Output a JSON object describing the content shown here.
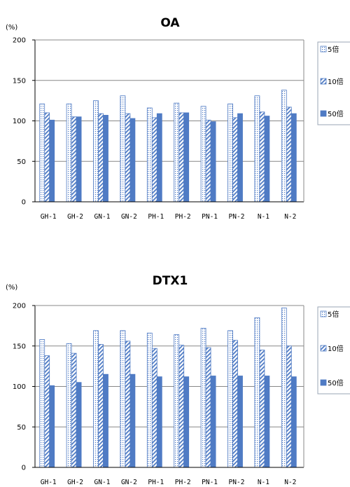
{
  "colors": {
    "bar_stroke": "#4F7BC4",
    "bar_fill_dark": "#4F7BC4",
    "hatch_line": "#4F7BC4",
    "grid": "#888888",
    "axis": "#000000",
    "legend_border": "#9AA4B4"
  },
  "chart_data": [
    {
      "type": "bar",
      "title": "OA",
      "unit_label": "(%)",
      "categories": [
        "GH-1",
        "GH-2",
        "GN-1",
        "GN-2",
        "PH-1",
        "PH-2",
        "PN-1",
        "PN-2",
        "N-1",
        "N-2"
      ],
      "series": [
        {
          "name": "5倍",
          "pattern": "dots",
          "values": [
            121,
            121,
            125,
            131,
            116,
            122,
            118,
            121,
            131,
            138
          ]
        },
        {
          "name": "10倍",
          "pattern": "hatch",
          "values": [
            110,
            105,
            109,
            109,
            104,
            110,
            101,
            104,
            111,
            117
          ]
        },
        {
          "name": "50倍",
          "pattern": "solid",
          "values": [
            101,
            105,
            107,
            103,
            109,
            110,
            99,
            109,
            106,
            109
          ]
        }
      ],
      "yticks": [
        0,
        50,
        100,
        150,
        200
      ],
      "ylim": [
        0,
        200
      ],
      "grid": true,
      "legend_position": "right"
    },
    {
      "type": "bar",
      "title": "DTX1",
      "unit_label": "(%)",
      "categories": [
        "GH-1",
        "GH-2",
        "GN-1",
        "GN-2",
        "PH-1",
        "PH-2",
        "PN-1",
        "PN-2",
        "N-1",
        "N-2"
      ],
      "series": [
        {
          "name": "5倍",
          "pattern": "dots",
          "values": [
            158,
            153,
            169,
            169,
            166,
            164,
            172,
            169,
            185,
            197
          ]
        },
        {
          "name": "10倍",
          "pattern": "hatch",
          "values": [
            138,
            141,
            152,
            156,
            147,
            151,
            148,
            157,
            145,
            150
          ]
        },
        {
          "name": "50倍",
          "pattern": "solid",
          "values": [
            101,
            105,
            115,
            115,
            112,
            112,
            113,
            113,
            113,
            112
          ]
        }
      ],
      "yticks": [
        0,
        50,
        100,
        150,
        200
      ],
      "ylim": [
        0,
        200
      ],
      "grid": true,
      "legend_position": "right"
    }
  ]
}
